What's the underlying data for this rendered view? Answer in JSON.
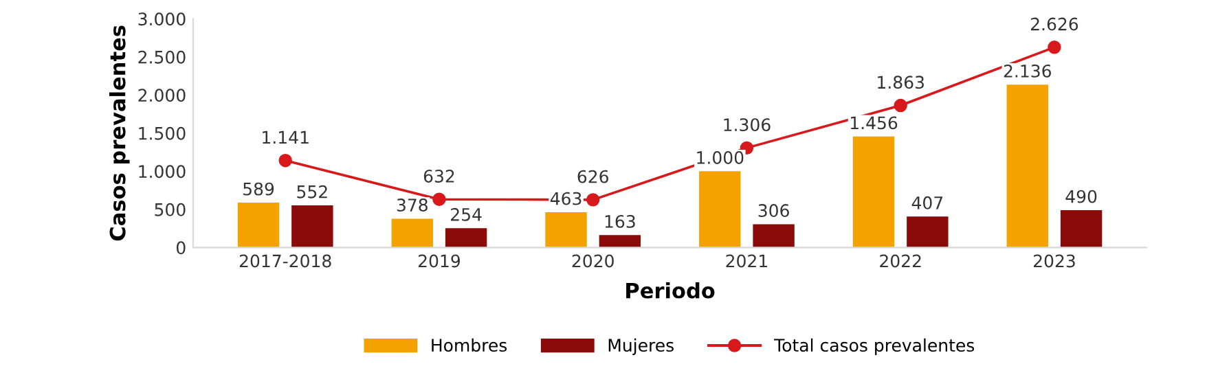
{
  "chart_data": {
    "type": "bar",
    "xlabel": "Periodo",
    "ylabel": "Casos prevalentes",
    "categories": [
      "2017-2018",
      "2019",
      "2020",
      "2021",
      "2022",
      "2023"
    ],
    "series": [
      {
        "name": "Hombres",
        "color": "#f5a100",
        "values": [
          589,
          378,
          463,
          1000,
          1456,
          2136
        ],
        "value_labels": [
          "589",
          "378",
          "463",
          "1.000",
          "1.456",
          "2.136"
        ]
      },
      {
        "name": "Mujeres",
        "color": "#8b0a0a",
        "values": [
          552,
          254,
          163,
          306,
          407,
          490
        ],
        "value_labels": [
          "552",
          "254",
          "163",
          "306",
          "407",
          "490"
        ]
      },
      {
        "name": "Total casos prevalentes",
        "type": "line",
        "color": "#d7191c",
        "marker": "circle",
        "values": [
          1141,
          632,
          626,
          1306,
          1863,
          2626
        ],
        "value_labels": [
          "1.141",
          "632",
          "626",
          "1.306",
          "1.863",
          "2.626"
        ]
      }
    ],
    "ylim": [
      0,
      3000
    ],
    "yticks": [
      {
        "value": 0,
        "label": "0"
      },
      {
        "value": 500,
        "label": "500"
      },
      {
        "value": 1000,
        "label": "1.000"
      },
      {
        "value": 1500,
        "label": "1.500"
      },
      {
        "value": 2000,
        "label": "2.000"
      },
      {
        "value": 2500,
        "label": "2.500"
      },
      {
        "value": 3000,
        "label": "3.000"
      }
    ],
    "grid": false,
    "legend": "bottom"
  }
}
